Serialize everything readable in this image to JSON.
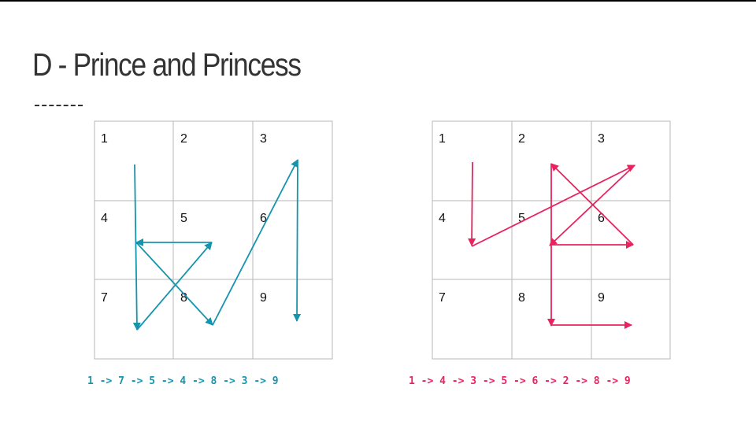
{
  "slide": {
    "title": "D - Prince and Princess"
  },
  "grids": [
    {
      "cells": [
        "1",
        "2",
        "3",
        "4",
        "5",
        "6",
        "7",
        "8",
        "9"
      ],
      "path": [
        1,
        7,
        5,
        4,
        8,
        3,
        9
      ],
      "color": "#1594ad",
      "sequence_label": "1 -> 7 -> 5 -> 4 -> 8 -> 3 -> 9"
    },
    {
      "cells": [
        "1",
        "2",
        "3",
        "4",
        "5",
        "6",
        "7",
        "8",
        "9"
      ],
      "path": [
        1,
        4,
        3,
        5,
        6,
        2,
        8,
        9
      ],
      "color": "#e8235f",
      "sequence_label": "1 -> 4 -> 3 -> 5 -> 6 -> 2 -> 8 -> 9"
    }
  ]
}
